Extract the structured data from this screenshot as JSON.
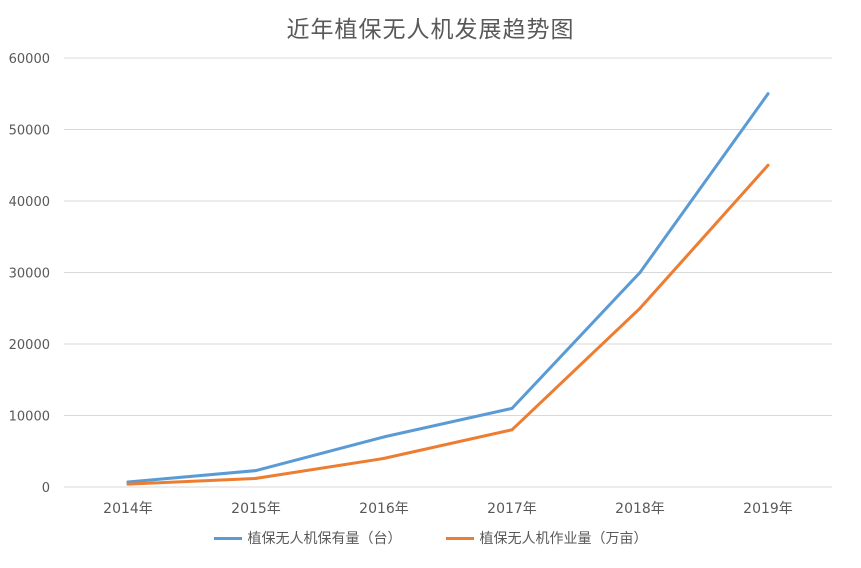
{
  "chart_data": {
    "type": "line",
    "title": "近年植保无人机发展趋势图",
    "categories": [
      "2014年",
      "2015年",
      "2016年",
      "2017年",
      "2018年",
      "2019年"
    ],
    "series": [
      {
        "name": "植保无人机保有量（台）",
        "values": [
          700,
          2300,
          7000,
          11000,
          30000,
          55000
        ],
        "color": "#5b9bd5"
      },
      {
        "name": "植保无人机作业量（万亩）",
        "values": [
          400,
          1200,
          4000,
          8000,
          25000,
          45000
        ],
        "color": "#ed7d31"
      }
    ],
    "yticks": [
      "0",
      "10000",
      "20000",
      "30000",
      "40000",
      "50000",
      "60000"
    ],
    "ylim": [
      0,
      60000
    ],
    "grid": true,
    "legend": "bottom",
    "gridColor": "#d9d9d9",
    "textColor": "#595959"
  }
}
